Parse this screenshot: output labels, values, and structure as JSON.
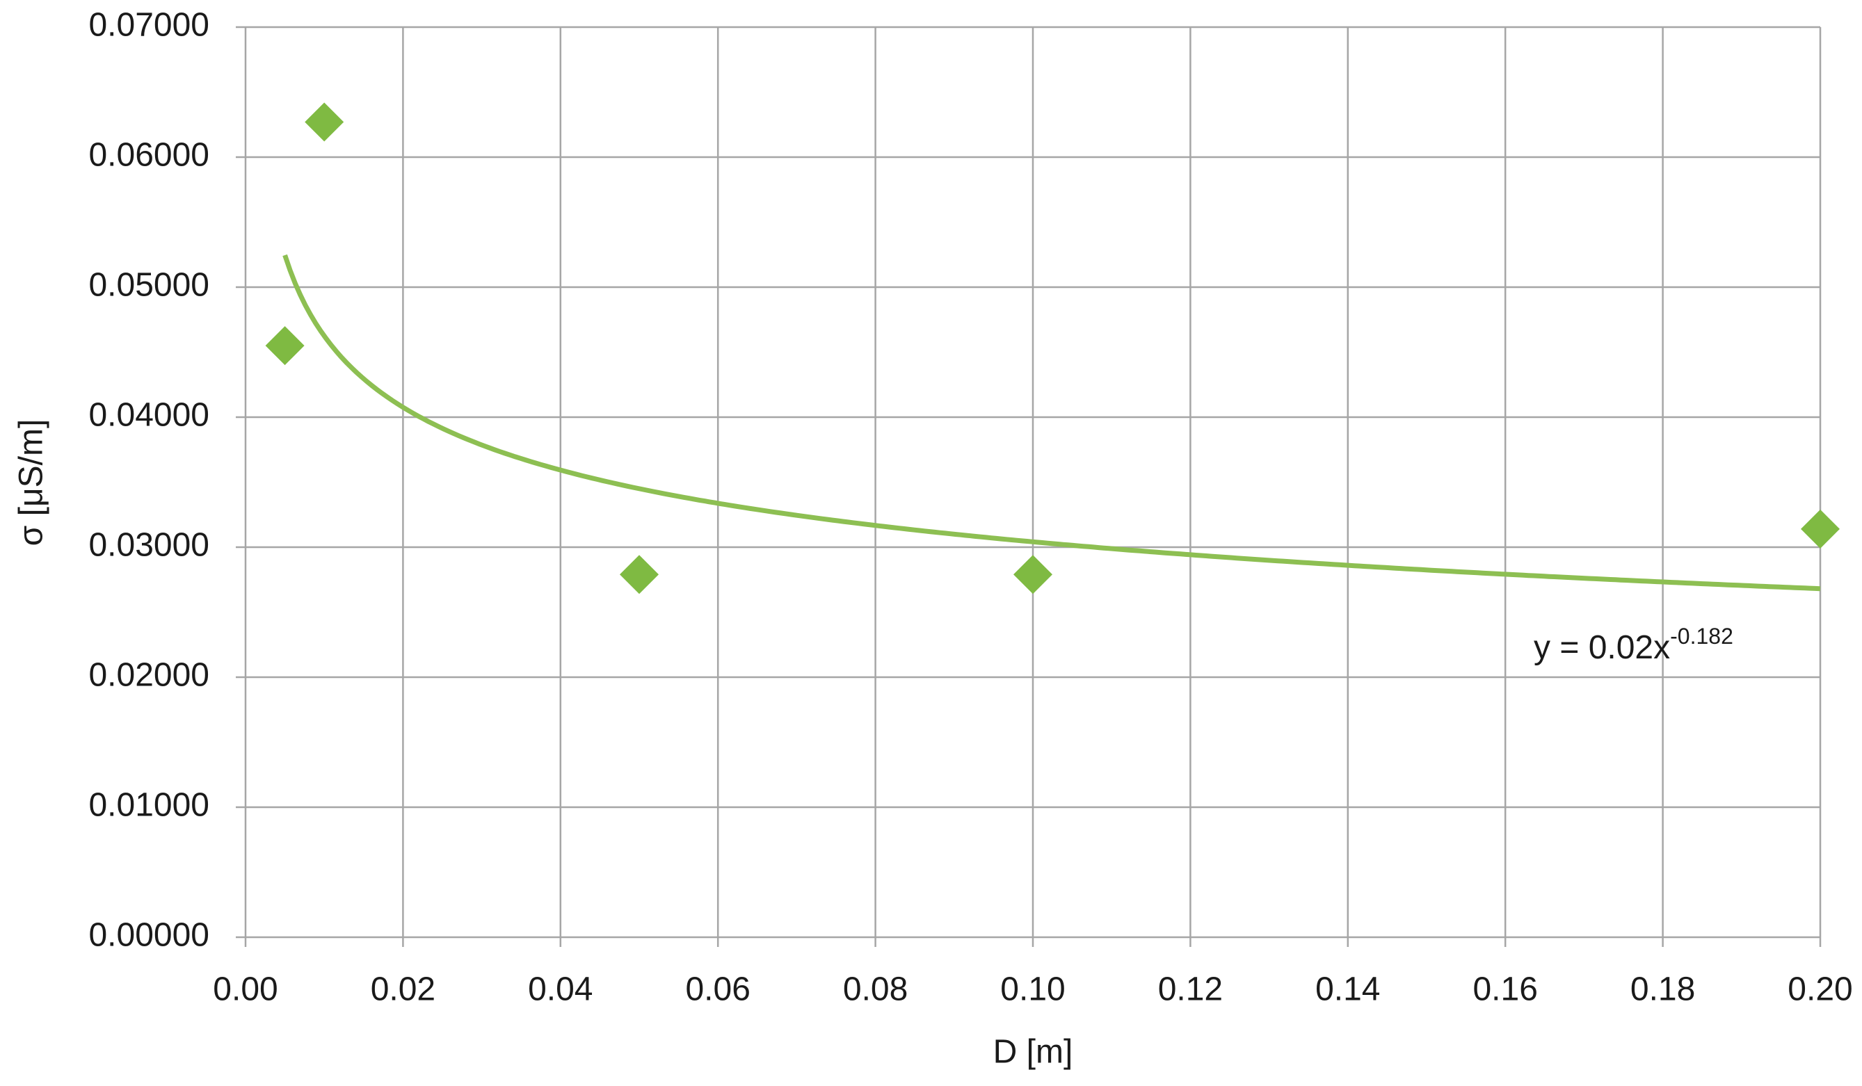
{
  "chart_data": {
    "type": "scatter",
    "x_label": "D [m]",
    "y_label": "σ [μS/m]",
    "series": [
      {
        "color": "#7fba42",
        "x": [
          0.005,
          0.01,
          0.05,
          0.1,
          0.2
        ],
        "values": [
          0.0455,
          0.0627,
          0.0279,
          0.0279,
          0.0314
        ]
      }
    ],
    "trendline": {
      "label": "y = 0.02x",
      "exponent": "-0.182",
      "coefficient": 0.02,
      "power": -0.182,
      "color": "#8dbf52"
    },
    "xlim": [
      0,
      0.2
    ],
    "ylim": [
      0,
      0.07
    ],
    "xticks": [
      {
        "value": 0,
        "label": "0.00"
      },
      {
        "value": 0.02,
        "label": "0.02"
      },
      {
        "value": 0.04,
        "label": "0.04"
      },
      {
        "value": 0.06,
        "label": "0.06"
      },
      {
        "value": 0.08,
        "label": "0.08"
      },
      {
        "value": 0.1,
        "label": "0.10"
      },
      {
        "value": 0.12,
        "label": "0.12"
      },
      {
        "value": 0.14,
        "label": "0.14"
      },
      {
        "value": 0.16,
        "label": "0.16"
      },
      {
        "value": 0.18,
        "label": "0.18"
      },
      {
        "value": 0.2,
        "label": "0.20"
      }
    ],
    "yticks": [
      {
        "value": 0,
        "label": "0.00000"
      },
      {
        "value": 0.01,
        "label": "0.01000"
      },
      {
        "value": 0.02,
        "label": "0.02000"
      },
      {
        "value": 0.03,
        "label": "0.03000"
      },
      {
        "value": 0.04,
        "label": "0.04000"
      },
      {
        "value": 0.05,
        "label": "0.05000"
      },
      {
        "value": 0.06,
        "label": "0.06000"
      },
      {
        "value": 0.07,
        "label": "0.07000"
      }
    ],
    "grid": true
  }
}
